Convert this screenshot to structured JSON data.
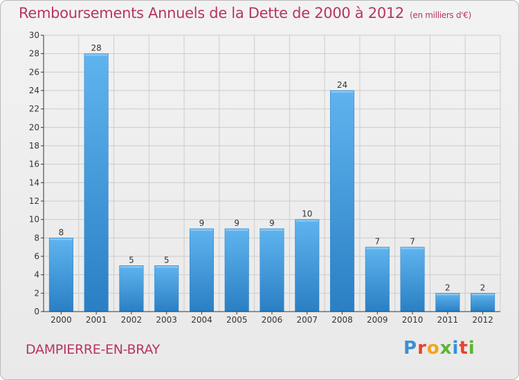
{
  "title": "Remboursements Annuels de la Dette de 2000 à 2012",
  "subtitle": "(en milliers d'€)",
  "commune": "DAMPIERRE-EN-BRAY",
  "brand": {
    "text": "Proxiti",
    "colors": [
      "#3a8fd6",
      "#e8432e",
      "#f2a51c",
      "#5db432",
      "#3a8fd6",
      "#e8432e",
      "#5db432"
    ]
  },
  "colors": {
    "bar": "#3f9ee6",
    "bar_light": "#5fb4ef",
    "bar_dark": "#2a7fc4",
    "grid": "#cccccc",
    "axis": "#333333"
  },
  "chart_data": {
    "type": "bar",
    "categories": [
      "2000",
      "2001",
      "2002",
      "2003",
      "2004",
      "2005",
      "2006",
      "2007",
      "2008",
      "2009",
      "2010",
      "2011",
      "2012"
    ],
    "values": [
      8,
      28,
      5,
      5,
      9,
      9,
      9,
      10,
      24,
      7,
      7,
      2,
      2
    ],
    "ylim": [
      0,
      30
    ],
    "yticks": [
      0,
      2,
      4,
      6,
      8,
      10,
      12,
      14,
      16,
      18,
      20,
      22,
      24,
      26,
      28,
      30
    ],
    "grid": true,
    "xlabel": "",
    "ylabel": ""
  }
}
